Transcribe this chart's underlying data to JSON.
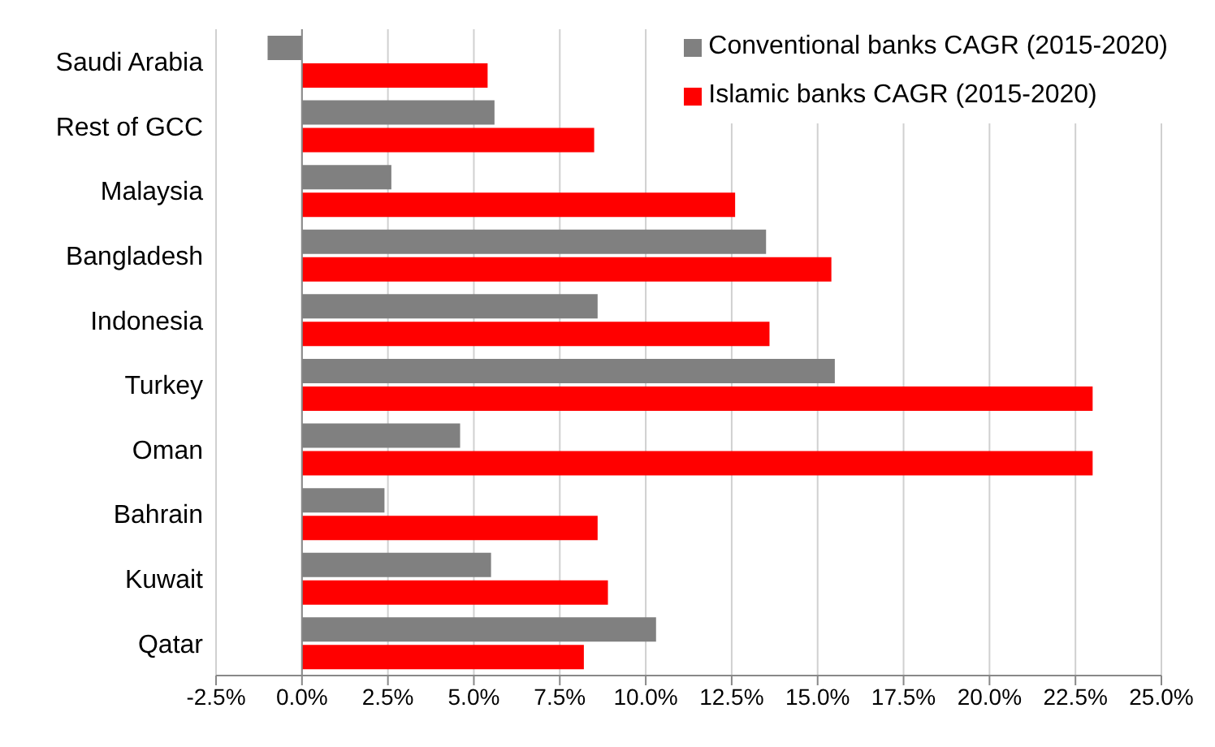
{
  "chart_data": {
    "type": "bar",
    "orientation": "horizontal",
    "categories": [
      "Saudi Arabia",
      "Rest of GCC",
      "Malaysia",
      "Bangladesh",
      "Indonesia",
      "Turkey",
      "Oman",
      "Bahrain",
      "Kuwait",
      "Qatar"
    ],
    "series": [
      {
        "name": "Conventional banks CAGR (2015-2020)",
        "color": "#808080",
        "values": [
          -1.0,
          5.6,
          2.6,
          13.5,
          8.6,
          15.5,
          4.6,
          2.4,
          5.5,
          10.3
        ]
      },
      {
        "name": "Islamic banks CAGR (2015-2020)",
        "color": "#ff0000",
        "values": [
          5.4,
          8.5,
          12.6,
          15.4,
          13.6,
          23.0,
          23.0,
          8.6,
          8.9,
          8.2
        ]
      }
    ],
    "xlim": [
      -2.5,
      25
    ],
    "xticks": [
      {
        "value": -2.5,
        "label": "-2.5%"
      },
      {
        "value": 0,
        "label": "0.0%"
      },
      {
        "value": 2.5,
        "label": "2.5%"
      },
      {
        "value": 5,
        "label": "5.0%"
      },
      {
        "value": 7.5,
        "label": "7.5%"
      },
      {
        "value": 10,
        "label": "10.0%"
      },
      {
        "value": 12.5,
        "label": "12.5%"
      },
      {
        "value": 15,
        "label": "15.0%"
      },
      {
        "value": 17.5,
        "label": "17.5%"
      },
      {
        "value": 20,
        "label": "20.0%"
      },
      {
        "value": 22.5,
        "label": "22.5%"
      },
      {
        "value": 25,
        "label": "25.0%"
      }
    ],
    "grid": "x",
    "legend": "top right"
  }
}
